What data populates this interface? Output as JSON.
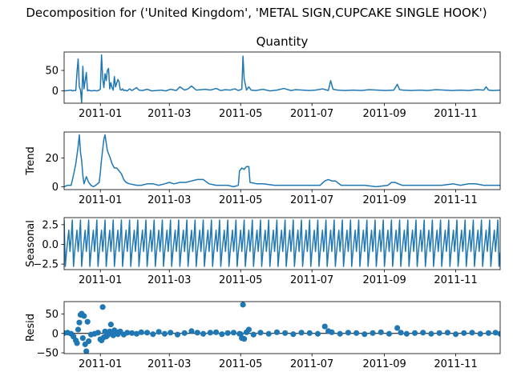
{
  "figure": {
    "suptitle": "Decomposition for ('United Kingdom', 'METAL SIGN,CUPCAKE SINGLE HOOK')",
    "line_color": "#1f77b4",
    "x_tick_labels": [
      "2011-01",
      "2011-03",
      "2011-05",
      "2011-07",
      "2011-09",
      "2011-11"
    ]
  },
  "chart_data": [
    {
      "type": "line",
      "title": "Quantity",
      "ylabel": "",
      "xlim": [
        "2010-12-01",
        "2011-12-09"
      ],
      "ylim": [
        -30,
        95
      ],
      "yticks": [
        0,
        50
      ],
      "x_ticks": [
        "2011-01-01",
        "2011-03-01",
        "2011-05-01",
        "2011-07-01",
        "2011-09-01",
        "2011-11-01"
      ],
      "x": [
        "2010-12-01",
        "2010-12-04",
        "2010-12-07",
        "2010-12-08",
        "2010-12-09",
        "2010-12-11",
        "2010-12-12",
        "2010-12-13",
        "2010-12-14",
        "2010-12-15",
        "2010-12-16",
        "2010-12-17",
        "2010-12-18",
        "2010-12-20",
        "2010-12-21",
        "2010-12-22",
        "2010-12-24",
        "2010-12-27",
        "2010-12-29",
        "2010-12-31",
        "2011-01-01",
        "2011-01-02",
        "2011-01-03",
        "2011-01-04",
        "2011-01-05",
        "2011-01-06",
        "2011-01-07",
        "2011-01-08",
        "2011-01-09",
        "2011-01-10",
        "2011-01-11",
        "2011-01-12",
        "2011-01-13",
        "2011-01-14",
        "2011-01-16",
        "2011-01-17",
        "2011-01-18",
        "2011-01-19",
        "2011-01-20",
        "2011-01-21",
        "2011-01-22",
        "2011-01-24",
        "2011-01-26",
        "2011-01-28",
        "2011-02-01",
        "2011-02-03",
        "2011-02-06",
        "2011-02-10",
        "2011-02-14",
        "2011-02-18",
        "2011-02-22",
        "2011-02-26",
        "2011-03-02",
        "2011-03-07",
        "2011-03-10",
        "2011-03-14",
        "2011-03-17",
        "2011-03-20",
        "2011-03-24",
        "2011-03-28",
        "2011-04-01",
        "2011-04-05",
        "2011-04-10",
        "2011-04-14",
        "2011-04-18",
        "2011-04-22",
        "2011-04-26",
        "2011-04-29",
        "2011-05-02",
        "2011-05-03",
        "2011-05-04",
        "2011-05-06",
        "2011-05-08",
        "2011-05-10",
        "2011-05-14",
        "2011-05-20",
        "2011-05-26",
        "2011-06-01",
        "2011-06-07",
        "2011-06-13",
        "2011-06-17",
        "2011-06-23",
        "2011-06-29",
        "2011-07-04",
        "2011-07-10",
        "2011-07-15",
        "2011-07-17",
        "2011-07-19",
        "2011-07-23",
        "2011-07-29",
        "2011-08-05",
        "2011-08-12",
        "2011-08-19",
        "2011-08-26",
        "2011-09-02",
        "2011-09-09",
        "2011-09-12",
        "2011-09-14",
        "2011-09-17",
        "2011-09-24",
        "2011-10-01",
        "2011-10-08",
        "2011-10-15",
        "2011-10-22",
        "2011-10-29",
        "2011-11-05",
        "2011-11-12",
        "2011-11-19",
        "2011-11-25",
        "2011-11-27",
        "2011-11-29",
        "2011-12-03",
        "2011-12-09"
      ],
      "series": [
        {
          "values": [
            0,
            1,
            2,
            0,
            1,
            1,
            45,
            78,
            10,
            2,
            -28,
            60,
            5,
            45,
            0,
            2,
            0,
            1,
            0,
            2,
            5,
            88,
            30,
            8,
            42,
            25,
            50,
            55,
            5,
            20,
            8,
            2,
            35,
            10,
            28,
            22,
            3,
            2,
            5,
            1,
            2,
            0,
            5,
            1,
            8,
            2,
            1,
            4,
            0,
            1,
            2,
            0,
            4,
            1,
            10,
            2,
            5,
            12,
            2,
            3,
            4,
            2,
            6,
            1,
            3,
            2,
            5,
            1,
            4,
            85,
            30,
            2,
            10,
            2,
            1,
            4,
            0,
            2,
            6,
            1,
            3,
            2,
            1,
            2,
            5,
            1,
            25,
            4,
            2,
            1,
            2,
            1,
            3,
            2,
            1,
            2,
            16,
            3,
            2,
            1,
            2,
            1,
            3,
            2,
            1,
            2,
            1,
            3,
            2,
            10,
            2,
            1,
            2
          ]
        }
      ]
    },
    {
      "type": "line",
      "title": "",
      "ylabel": "Trend",
      "xlim": [
        "2010-12-01",
        "2011-12-09"
      ],
      "ylim": [
        -2,
        38
      ],
      "yticks": [
        0,
        20
      ],
      "x_ticks": [
        "2011-01-01",
        "2011-03-01",
        "2011-05-01",
        "2011-07-01",
        "2011-09-01",
        "2011-11-01"
      ],
      "x": [
        "2010-12-01",
        "2010-12-04",
        "2010-12-07",
        "2010-12-09",
        "2010-12-11",
        "2010-12-13",
        "2010-12-14",
        "2010-12-15",
        "2010-12-16",
        "2010-12-17",
        "2010-12-18",
        "2010-12-20",
        "2010-12-22",
        "2010-12-24",
        "2010-12-26",
        "2010-12-28",
        "2010-12-31",
        "2011-01-01",
        "2011-01-02",
        "2011-01-03",
        "2011-01-04",
        "2011-01-05",
        "2011-01-07",
        "2011-01-09",
        "2011-01-11",
        "2011-01-13",
        "2011-01-15",
        "2011-01-17",
        "2011-01-19",
        "2011-01-21",
        "2011-01-23",
        "2011-01-26",
        "2011-02-01",
        "2011-02-05",
        "2011-02-10",
        "2011-02-15",
        "2011-02-20",
        "2011-02-25",
        "2011-03-01",
        "2011-03-05",
        "2011-03-10",
        "2011-03-15",
        "2011-03-20",
        "2011-03-25",
        "2011-03-30",
        "2011-04-04",
        "2011-04-10",
        "2011-04-15",
        "2011-04-20",
        "2011-04-25",
        "2011-04-29",
        "2011-04-30",
        "2011-05-02",
        "2011-05-04",
        "2011-05-06",
        "2011-05-08",
        "2011-05-09",
        "2011-05-15",
        "2011-05-20",
        "2011-05-30",
        "2011-06-08",
        "2011-06-18",
        "2011-06-28",
        "2011-07-08",
        "2011-07-12",
        "2011-07-15",
        "2011-07-18",
        "2011-07-21",
        "2011-07-26",
        "2011-08-05",
        "2011-08-15",
        "2011-08-25",
        "2011-09-04",
        "2011-09-07",
        "2011-09-10",
        "2011-09-16",
        "2011-09-20",
        "2011-09-30",
        "2011-10-10",
        "2011-10-20",
        "2011-10-30",
        "2011-11-05",
        "2011-11-12",
        "2011-11-18",
        "2011-11-25",
        "2011-12-02",
        "2011-12-09"
      ],
      "series": [
        {
          "values": [
            0,
            1,
            1,
            8,
            16,
            28,
            36,
            24,
            18,
            8,
            2,
            7,
            3,
            1,
            0,
            1,
            3,
            10,
            19,
            26,
            33,
            36,
            25,
            21,
            16,
            13,
            13,
            11,
            9,
            5,
            3,
            2,
            1,
            1,
            2,
            2,
            1,
            2,
            3,
            2,
            3,
            3,
            4,
            5,
            5,
            2,
            1,
            1,
            1,
            0,
            1,
            11,
            13,
            12,
            14,
            14,
            3,
            2,
            2,
            1,
            1,
            1,
            1,
            1,
            4,
            5,
            4,
            4,
            1,
            1,
            1,
            0,
            1,
            3,
            3,
            1,
            1,
            1,
            1,
            1,
            2,
            1,
            2,
            2,
            1,
            1,
            1
          ]
        }
      ]
    },
    {
      "type": "line",
      "title": "",
      "ylabel": "Seasonal",
      "xlim": [
        "2010-12-01",
        "2011-12-09"
      ],
      "ylim": [
        -3.2,
        3.4
      ],
      "yticks": [
        2.5,
        0.0,
        -2.5
      ],
      "ytick_labels": [
        "2.5",
        "0.0",
        "−2.5"
      ],
      "x_ticks": [
        "2011-01-01",
        "2011-03-01",
        "2011-05-01",
        "2011-07-01",
        "2011-09-01",
        "2011-11-01"
      ],
      "period_days": 7,
      "pattern_start": "2010-12-01",
      "pattern": [
        3.1,
        -2.8,
        -1.0,
        0.4,
        1.8,
        -0.9,
        0.8
      ]
    },
    {
      "type": "scatter",
      "title": "",
      "ylabel": "Resid",
      "xlim": [
        "2010-12-01",
        "2011-12-09"
      ],
      "ylim": [
        -52,
        82
      ],
      "yticks": [
        50,
        0,
        -50
      ],
      "ytick_labels": [
        "50",
        "0",
        "−50"
      ],
      "x_ticks": [
        "2011-01-01",
        "2011-03-01",
        "2011-05-01",
        "2011-07-01",
        "2011-09-01",
        "2011-11-01"
      ],
      "baseline": 0,
      "x": [
        "2010-12-01",
        "2010-12-04",
        "2010-12-07",
        "2010-12-09",
        "2010-12-11",
        "2010-12-12",
        "2010-12-13",
        "2010-12-14",
        "2010-12-15",
        "2010-12-16",
        "2010-12-17",
        "2010-12-18",
        "2010-12-19",
        "2010-12-20",
        "2010-12-21",
        "2010-12-22",
        "2010-12-24",
        "2010-12-27",
        "2010-12-30",
        "2011-01-01",
        "2011-01-02",
        "2011-01-03",
        "2011-01-04",
        "2011-01-05",
        "2011-01-06",
        "2011-01-07",
        "2011-01-08",
        "2011-01-09",
        "2011-01-10",
        "2011-01-12",
        "2011-01-13",
        "2011-01-15",
        "2011-01-16",
        "2011-01-18",
        "2011-01-21",
        "2011-01-24",
        "2011-01-28",
        "2011-02-01",
        "2011-02-05",
        "2011-02-10",
        "2011-02-15",
        "2011-02-20",
        "2011-02-25",
        "2011-03-02",
        "2011-03-08",
        "2011-03-14",
        "2011-03-20",
        "2011-03-25",
        "2011-03-30",
        "2011-04-05",
        "2011-04-10",
        "2011-04-15",
        "2011-04-20",
        "2011-04-25",
        "2011-04-30",
        "2011-05-01",
        "2011-05-02",
        "2011-05-03",
        "2011-05-04",
        "2011-05-06",
        "2011-05-08",
        "2011-05-12",
        "2011-05-18",
        "2011-05-25",
        "2011-06-01",
        "2011-06-08",
        "2011-06-15",
        "2011-06-22",
        "2011-06-29",
        "2011-07-06",
        "2011-07-12",
        "2011-07-15",
        "2011-07-18",
        "2011-07-25",
        "2011-08-01",
        "2011-08-08",
        "2011-08-15",
        "2011-08-22",
        "2011-08-29",
        "2011-09-05",
        "2011-09-12",
        "2011-09-15",
        "2011-09-20",
        "2011-09-27",
        "2011-10-04",
        "2011-10-11",
        "2011-10-18",
        "2011-10-25",
        "2011-11-01",
        "2011-11-08",
        "2011-11-15",
        "2011-11-22",
        "2011-11-29",
        "2011-12-05",
        "2011-12-09"
      ],
      "series": [
        {
          "values": [
            1,
            2,
            -1,
            -8,
            -18,
            -25,
            10,
            28,
            48,
            51,
            -12,
            45,
            -28,
            -46,
            30,
            -20,
            -3,
            -1,
            2,
            -15,
            -18,
            68,
            -10,
            5,
            -8,
            -5,
            -2,
            5,
            23,
            -5,
            8,
            3,
            -2,
            5,
            -3,
            2,
            1,
            -1,
            3,
            2,
            -2,
            4,
            -1,
            2,
            -3,
            1,
            6,
            2,
            -1,
            2,
            3,
            -2,
            1,
            2,
            -1,
            -2,
            -12,
            74,
            -14,
            3,
            10,
            -3,
            2,
            -1,
            3,
            1,
            -2,
            2,
            1,
            -1,
            18,
            6,
            3,
            -1,
            2,
            1,
            -2,
            1,
            3,
            -1,
            14,
            2,
            -1,
            1,
            2,
            -1,
            1,
            2,
            -2,
            1,
            2,
            -1,
            1,
            2,
            -1
          ]
        }
      ]
    }
  ]
}
